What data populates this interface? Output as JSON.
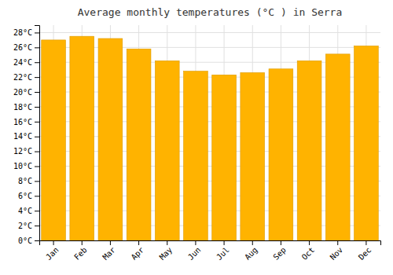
{
  "chart_data": {
    "type": "bar",
    "title": "Average monthly temperatures (°C ) in Serra",
    "categories": [
      "Jan",
      "Feb",
      "Mar",
      "Apr",
      "May",
      "Jun",
      "Jul",
      "Aug",
      "Sep",
      "Oct",
      "Nov",
      "Dec"
    ],
    "values": [
      27.0,
      27.5,
      27.2,
      25.8,
      24.2,
      22.8,
      22.3,
      22.6,
      23.1,
      24.2,
      25.1,
      26.2
    ],
    "color": "#FFB300",
    "ylim": [
      0,
      29
    ],
    "yticks": [
      {
        "value": 0,
        "label": "0°C"
      },
      {
        "value": 2,
        "label": "2°C"
      },
      {
        "value": 4,
        "label": "4°C"
      },
      {
        "value": 6,
        "label": "6°C"
      },
      {
        "value": 8,
        "label": "8°C"
      },
      {
        "value": 10,
        "label": "10°C"
      },
      {
        "value": 12,
        "label": "12°C"
      },
      {
        "value": 14,
        "label": "14°C"
      },
      {
        "value": 16,
        "label": "16°C"
      },
      {
        "value": 18,
        "label": "18°C"
      },
      {
        "value": 20,
        "label": "20°C"
      },
      {
        "value": 22,
        "label": "22°C"
      },
      {
        "value": 24,
        "label": "24°C"
      },
      {
        "value": 26,
        "label": "26°C"
      },
      {
        "value": 28,
        "label": "28°C"
      }
    ],
    "grid": true
  }
}
